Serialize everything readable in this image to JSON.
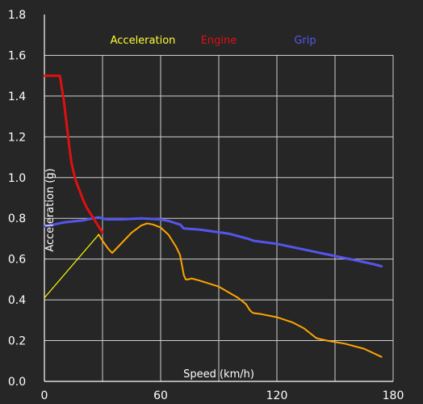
{
  "chart_data": {
    "type": "line",
    "xlabel": "Speed (km/h)",
    "ylabel": "Acceleration (g)",
    "xlim": [
      0,
      180
    ],
    "ylim": [
      0,
      1.8
    ],
    "x_ticks": [
      "0",
      "60",
      "120",
      "180"
    ],
    "y_ticks": [
      "0.0",
      "0.2",
      "0.4",
      "0.6",
      "0.8",
      "1.0",
      "1.2",
      "1.4",
      "1.6",
      "1.8"
    ],
    "grid": true,
    "legend_position": "top",
    "series": [
      {
        "name": "Grip",
        "color": "#5555ee",
        "x": [
          0,
          10,
          20,
          25,
          28,
          32,
          40,
          50,
          60,
          65,
          68,
          70,
          72,
          80,
          95,
          105,
          108,
          120,
          135,
          145,
          150,
          160,
          170,
          174
        ],
        "y": [
          0.76,
          0.78,
          0.79,
          0.8,
          0.805,
          0.795,
          0.795,
          0.8,
          0.795,
          0.785,
          0.775,
          0.77,
          0.75,
          0.745,
          0.725,
          0.7,
          0.69,
          0.675,
          0.645,
          0.625,
          0.615,
          0.595,
          0.575,
          0.565
        ]
      },
      {
        "name": "Engine",
        "color": "#e01010",
        "x": [
          0,
          3,
          6,
          8,
          9,
          10,
          11,
          12,
          13,
          14,
          16,
          18,
          20,
          22,
          24,
          26,
          28,
          30
        ],
        "y": [
          1.5,
          1.5,
          1.5,
          1.5,
          1.44,
          1.38,
          1.3,
          1.22,
          1.14,
          1.07,
          0.99,
          0.94,
          0.89,
          0.85,
          0.82,
          0.79,
          0.76,
          0.73
        ]
      },
      {
        "name": "Acceleration",
        "color": "#ffa500",
        "x": [
          28,
          30,
          33,
          35,
          40,
          45,
          50,
          53,
          56,
          60,
          64,
          68,
          70,
          72,
          73,
          74,
          76,
          80,
          90,
          100,
          104,
          106,
          107,
          108,
          112,
          120,
          128,
          134,
          138,
          140,
          141,
          142,
          146,
          155,
          165,
          174
        ],
        "y": [
          0.72,
          0.69,
          0.65,
          0.63,
          0.68,
          0.73,
          0.765,
          0.775,
          0.77,
          0.755,
          0.72,
          0.66,
          0.62,
          0.52,
          0.5,
          0.5,
          0.505,
          0.495,
          0.465,
          0.41,
          0.38,
          0.35,
          0.34,
          0.335,
          0.33,
          0.315,
          0.29,
          0.26,
          0.23,
          0.215,
          0.21,
          0.208,
          0.2,
          0.185,
          0.16,
          0.12
        ]
      },
      {
        "color": "#ffff00",
        "x": [
          0,
          28
        ],
        "y": [
          0.41,
          0.72
        ]
      }
    ]
  },
  "legend": {
    "acceleration": "Acceleration",
    "engine": "Engine",
    "grip": "Grip",
    "acceleration_color": "#ffff33",
    "engine_color": "#e01010",
    "grip_color": "#5555ee"
  }
}
